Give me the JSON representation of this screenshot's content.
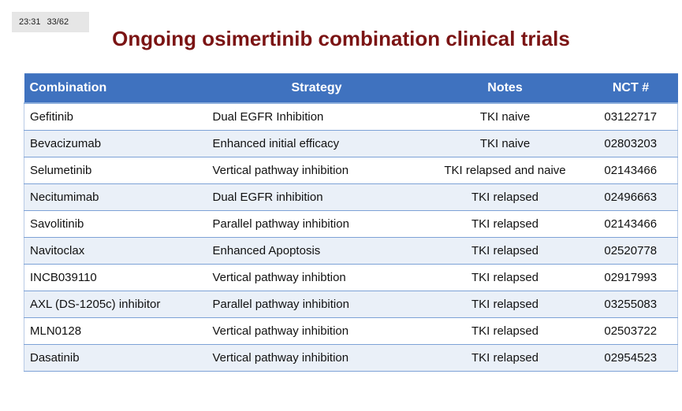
{
  "overlay": {
    "time": "23:31",
    "slide_counter": "33/62"
  },
  "title": "Ongoing osimertinib combination clinical trials",
  "table": {
    "headers": {
      "combination": "Combination",
      "strategy": "Strategy",
      "notes": "Notes",
      "nct": "NCT #"
    },
    "rows": [
      {
        "combination": "Gefitinib",
        "strategy": "Dual EGFR Inhibition",
        "notes": "TKI naive",
        "nct": "03122717"
      },
      {
        "combination": "Bevacizumab",
        "strategy": "Enhanced initial efficacy",
        "notes": "TKI naive",
        "nct": "02803203"
      },
      {
        "combination": "Selumetinib",
        "strategy": "Vertical pathway inhibition",
        "notes": "TKI relapsed and naive",
        "nct": "02143466"
      },
      {
        "combination": "Necitumimab",
        "strategy": "Dual EGFR inhibition",
        "notes": "TKI relapsed",
        "nct": "02496663"
      },
      {
        "combination": "Savolitinib",
        "strategy": "Parallel pathway inhibition",
        "notes": "TKI relapsed",
        "nct": "02143466"
      },
      {
        "combination": "Navitoclax",
        "strategy": "Enhanced Apoptosis",
        "notes": "TKI relapsed",
        "nct": "02520778"
      },
      {
        "combination": "INCB039110",
        "strategy": "Vertical pathway inhibtion",
        "notes": "TKI relapsed",
        "nct": "02917993"
      },
      {
        "combination": "AXL (DS-1205c) inhibitor",
        "strategy": "Parallel pathway inhibition",
        "notes": "TKI relapsed",
        "nct": "03255083"
      },
      {
        "combination": "MLN0128",
        "strategy": "Vertical pathway inhibition",
        "notes": "TKI relapsed",
        "nct": "02503722"
      },
      {
        "combination": "Dasatinib",
        "strategy": "Vertical pathway inhibition",
        "notes": "TKI relapsed",
        "nct": "02954523"
      }
    ]
  },
  "colors": {
    "title": "#7b1414",
    "header_background": "#3f72bf",
    "header_text": "#ffffff",
    "alt_row_background": "#eaf0f8",
    "row_divider": "#7da2d6"
  }
}
